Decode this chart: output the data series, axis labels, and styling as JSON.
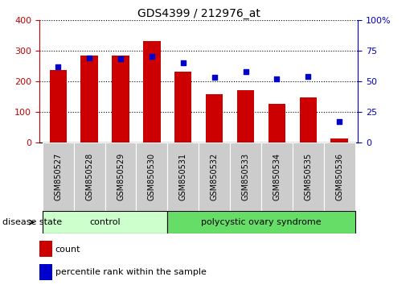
{
  "title": "GDS4399 / 212976_at",
  "samples": [
    "GSM850527",
    "GSM850528",
    "GSM850529",
    "GSM850530",
    "GSM850531",
    "GSM850532",
    "GSM850533",
    "GSM850534",
    "GSM850535",
    "GSM850536"
  ],
  "counts": [
    237,
    283,
    285,
    330,
    232,
    158,
    170,
    127,
    146,
    13
  ],
  "percentiles": [
    62,
    69,
    68,
    70,
    65,
    53,
    58,
    52,
    54,
    17
  ],
  "ylim_left": [
    0,
    400
  ],
  "ylim_right": [
    0,
    100
  ],
  "yticks_left": [
    0,
    100,
    200,
    300,
    400
  ],
  "yticks_right": [
    0,
    25,
    50,
    75,
    100
  ],
  "bar_color": "#cc0000",
  "dot_color": "#0000cc",
  "bar_width": 0.55,
  "group_labels": [
    "control",
    "polycystic ovary syndrome"
  ],
  "ctrl_color": "#ccffcc",
  "pcos_color": "#66dd66",
  "disease_label": "disease state",
  "legend_bar_label": "count",
  "legend_dot_label": "percentile rank within the sample",
  "tick_label_color_left": "#cc0000",
  "tick_label_color_right": "#0000cc",
  "xticklabel_bg": "#cccccc",
  "grid_color": "#000000"
}
